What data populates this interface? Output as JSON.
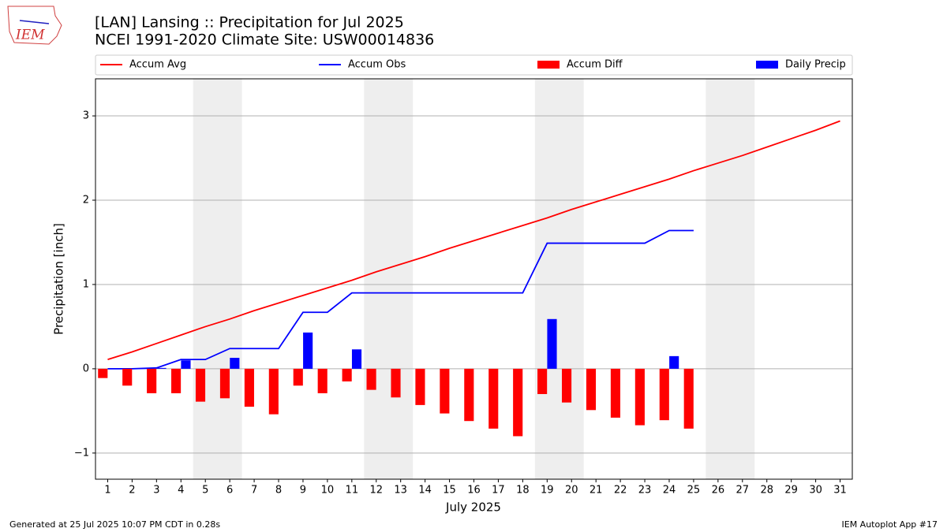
{
  "chart_data": {
    "type": "combo",
    "title": "[LAN] Lansing :: Precipitation for Jul 2025",
    "subtitle": "NCEI 1991-2020 Climate Site: USW00014836",
    "logo_text": "IEM",
    "xlabel": "July 2025",
    "ylabel": "Precipitation [inch]",
    "footer_left": "Generated at 25 Jul 2025 10:07 PM CDT in 0.28s",
    "footer_right": "IEM Autoplot App #17",
    "x": [
      1,
      2,
      3,
      4,
      5,
      6,
      7,
      8,
      9,
      10,
      11,
      12,
      13,
      14,
      15,
      16,
      17,
      18,
      19,
      20,
      21,
      22,
      23,
      24,
      25,
      26,
      27,
      28,
      29,
      30,
      31
    ],
    "xlim": [
      0.5,
      31.5
    ],
    "xticks": [
      1,
      2,
      3,
      4,
      5,
      6,
      7,
      8,
      9,
      10,
      11,
      12,
      13,
      14,
      15,
      16,
      17,
      18,
      19,
      20,
      21,
      22,
      23,
      24,
      25,
      26,
      27,
      28,
      29,
      30,
      31
    ],
    "ylim": [
      -1.31,
      3.44
    ],
    "yticks": [
      {
        "value": -1,
        "label": "−1"
      },
      0,
      1,
      2,
      3
    ],
    "grid": true,
    "shaded_spans": [
      [
        4.5,
        6.5
      ],
      [
        11.5,
        13.5
      ],
      [
        18.5,
        20.5
      ],
      [
        25.5,
        27.5
      ]
    ],
    "series": [
      {
        "name": "Accum Avg",
        "type": "line",
        "color": "#ff0000",
        "values": [
          0.11,
          0.2,
          0.3,
          0.4,
          0.5,
          0.59,
          0.69,
          0.78,
          0.87,
          0.96,
          1.05,
          1.15,
          1.24,
          1.33,
          1.43,
          1.52,
          1.61,
          1.7,
          1.79,
          1.89,
          1.98,
          2.07,
          2.16,
          2.25,
          2.35,
          2.44,
          2.53,
          2.63,
          2.73,
          2.83,
          2.94
        ]
      },
      {
        "name": "Accum Obs",
        "type": "line",
        "color": "#0000ff",
        "values": [
          0,
          0,
          0.01,
          0.11,
          0.11,
          0.24,
          0.24,
          0.24,
          0.67,
          0.67,
          0.9,
          0.9,
          0.9,
          0.9,
          0.9,
          0.9,
          0.9,
          0.9,
          1.49,
          1.49,
          1.49,
          1.49,
          1.49,
          1.64,
          1.64,
          null,
          null,
          null,
          null,
          null,
          null
        ]
      },
      {
        "name": "Accum Diff",
        "type": "bar",
        "color": "#ff0000",
        "values": [
          -0.11,
          -0.2,
          -0.29,
          -0.29,
          -0.39,
          -0.35,
          -0.45,
          -0.54,
          -0.2,
          -0.29,
          -0.15,
          -0.25,
          -0.34,
          -0.43,
          -0.53,
          -0.62,
          -0.71,
          -0.8,
          -0.3,
          -0.4,
          -0.49,
          -0.58,
          -0.67,
          -0.61,
          -0.71,
          null,
          null,
          null,
          null,
          null,
          null
        ]
      },
      {
        "name": "Daily Precip",
        "type": "bar",
        "color": "#0000ff",
        "values": [
          0,
          0,
          0.01,
          0.1,
          0,
          0.13,
          0,
          0,
          0.43,
          0,
          0.23,
          0,
          0,
          0,
          0,
          0,
          0,
          0,
          0.59,
          0,
          0,
          0,
          0,
          0.15,
          0,
          null,
          null,
          null,
          null,
          null,
          null
        ]
      }
    ]
  }
}
